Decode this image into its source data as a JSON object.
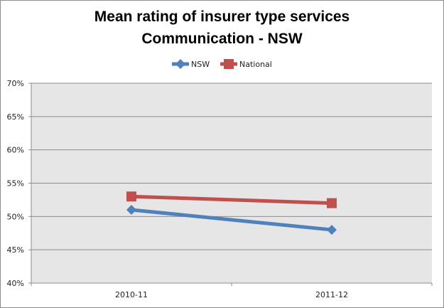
{
  "chart_data": {
    "type": "line",
    "title": "Mean rating of insurer type services",
    "subtitle": "Communication - NSW",
    "xlabel": "",
    "ylabel": "",
    "categories": [
      "2010-11",
      "2011-12"
    ],
    "series": [
      {
        "name": "NSW",
        "values": [
          0.51,
          0.48
        ],
        "color": "#4f81bd",
        "marker": "diamond"
      },
      {
        "name": "National",
        "values": [
          0.53,
          0.52
        ],
        "color": "#c0504d",
        "marker": "square"
      }
    ],
    "ylim": [
      0.4,
      0.7
    ],
    "yticks": [
      0.4,
      0.45,
      0.5,
      0.55,
      0.6,
      0.65,
      0.7
    ],
    "ytick_labels": [
      "40%",
      "45%",
      "50%",
      "55%",
      "60%",
      "65%",
      "70%"
    ],
    "grid": true,
    "legend_position": "top",
    "plot_background": "#e6e6e6"
  }
}
